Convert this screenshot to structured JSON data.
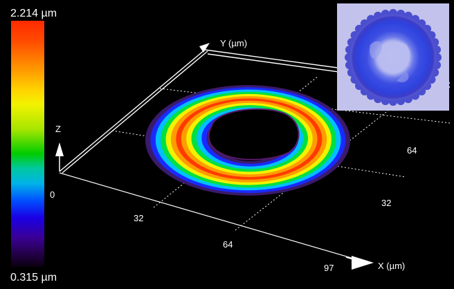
{
  "colorbar": {
    "max_label": "2.214 µm",
    "zero_label": "0",
    "min_label": "0.315 µm",
    "colors": [
      "#ff2a00",
      "#ff8c00",
      "#f2f200",
      "#00cc00",
      "#00b4e6",
      "#0050ff",
      "#3a0096",
      "#0a0010"
    ]
  },
  "axes": {
    "y_label": "Y (µm)",
    "z_label": "Z",
    "x_label": "X (µm)",
    "x_ticks": [
      "32",
      "64",
      "97"
    ],
    "y_ticks": [
      "32",
      "64"
    ]
  },
  "inset": {
    "description_icon": "top-view-image",
    "background": "#c2c2ec",
    "ring_color": "#2f45e0"
  },
  "ring": {
    "colors_outer_to_inner": [
      "#3a1a6a",
      "#1a2aff",
      "#00c0ff",
      "#00e040",
      "#f2f200",
      "#ff9c00",
      "#ff3a00",
      "#ff9c00",
      "#f2f200",
      "#00e040",
      "#00c0ff",
      "#1a2aff",
      "#3a1a6a",
      "#000000"
    ]
  }
}
